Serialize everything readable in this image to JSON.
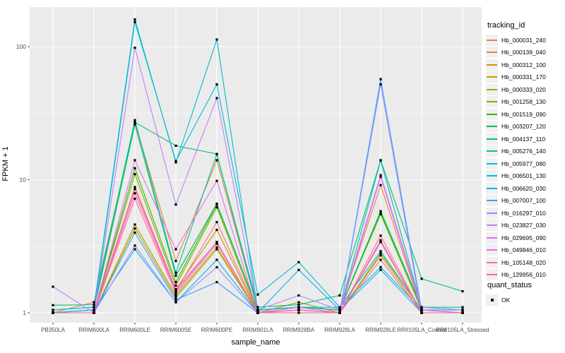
{
  "axes": {
    "y_title": "FPKM + 1",
    "x_title": "sample_name"
  },
  "legend": {
    "tracking_title": "tracking_id",
    "quant_title": "quant_status",
    "quant_label": "OK"
  },
  "colors": {
    "panel_bg": "#EBEBEB",
    "grid": "#FFFFFF",
    "tick": "#333333",
    "tick_label": "#4D4D4D",
    "point": "#000000",
    "legend_key_bg": "#F0F0F0"
  },
  "chart_data": {
    "type": "line",
    "title": "",
    "xlabel": "sample_name",
    "ylabel": "FPKM + 1",
    "y_scale": "log10",
    "ylim": [
      0.86,
      200
    ],
    "grid": true,
    "legend_position": "right",
    "yticks": [
      {
        "label": "100",
        "value": 100
      },
      {
        "label": "10",
        "value": 10
      },
      {
        "label": "1",
        "value": 1
      }
    ],
    "minor_gridlines": [
      3.162,
      31.62
    ],
    "categories": [
      "PB350LA",
      "RRIM600LA",
      "RRIM600LE",
      "RRIM600SE",
      "RRIM600PE",
      "RRIM901LA",
      "RRIM928BA",
      "RRIM928LA",
      "RRIM928LE",
      "RRII105LA_Control",
      "RRII105LA_Stressed"
    ],
    "legend_title": "tracking_id",
    "point_legend": {
      "title": "quant_status",
      "label": "OK",
      "marker": "black-square"
    },
    "series": [
      {
        "name": "Hb_000031_240",
        "color": "#F8766D",
        "values": [
          1,
          1,
          8.5,
          1.45,
          4.8,
          1,
          1.05,
          1,
          3.8,
          1,
          1
        ]
      },
      {
        "name": "Hb_000139_040",
        "color": "#EA8331",
        "values": [
          1,
          1.2,
          27,
          2.45,
          14,
          1.05,
          1.1,
          1.05,
          9.1,
          1.05,
          1
        ]
      },
      {
        "name": "Hb_000312_100",
        "color": "#D89000",
        "values": [
          1,
          1,
          8.8,
          1.5,
          4.2,
          1,
          1.05,
          1,
          3.4,
          1,
          1
        ]
      },
      {
        "name": "Hb_000331_170",
        "color": "#C09B00",
        "values": [
          1,
          1,
          4.3,
          1.3,
          3.0,
          1,
          1.05,
          1,
          2.7,
          1,
          1
        ]
      },
      {
        "name": "Hb_000333_020",
        "color": "#A3A500",
        "values": [
          1,
          1,
          4.6,
          1.35,
          3.1,
          1,
          1.2,
          1,
          2.8,
          1.05,
          1
        ]
      },
      {
        "name": "Hb_001258_130",
        "color": "#7CAE00",
        "values": [
          1,
          1,
          11,
          1.6,
          6.2,
          1,
          1.1,
          1.05,
          5.5,
          1.05,
          1
        ]
      },
      {
        "name": "Hb_001519_090",
        "color": "#39B600",
        "values": [
          1,
          1,
          12.2,
          1.7,
          6.5,
          1.05,
          1.1,
          1.05,
          5.6,
          1.05,
          1.05
        ]
      },
      {
        "name": "Hb_003207_120",
        "color": "#00BB4E",
        "values": [
          1,
          1.05,
          26,
          1.9,
          6.6,
          1.05,
          1.1,
          1.05,
          5.8,
          1.1,
          1.05
        ]
      },
      {
        "name": "Hb_004137_110",
        "color": "#00BF7D",
        "values": [
          1.14,
          1.15,
          27,
          18,
          15.6,
          1.1,
          1.15,
          1.35,
          14,
          1.8,
          1.45
        ]
      },
      {
        "name": "Hb_005276_140",
        "color": "#00C1A3",
        "values": [
          1.05,
          1.1,
          28,
          2.0,
          15.5,
          1.05,
          1.1,
          1.05,
          13.9,
          1.1,
          1.1
        ]
      },
      {
        "name": "Hb_005977_080",
        "color": "#00BFC4",
        "values": [
          1.05,
          1.1,
          160,
          13.5,
          113,
          1.05,
          1.1,
          1.1,
          2.9,
          1.05,
          1.05
        ]
      },
      {
        "name": "Hb_006501_130",
        "color": "#00BAE0",
        "values": [
          1,
          1.05,
          153,
          13.8,
          52,
          1.37,
          2.4,
          1.1,
          2.2,
          1.05,
          1.05
        ]
      },
      {
        "name": "Hb_006620_030",
        "color": "#00B0F6",
        "values": [
          1,
          1.05,
          3.0,
          1.2,
          2.5,
          1,
          2.1,
          1.05,
          2.1,
          1,
          1
        ]
      },
      {
        "name": "Hb_007007_100",
        "color": "#35A2FF",
        "values": [
          1,
          1,
          4.0,
          1.25,
          1.7,
          1,
          1.05,
          1,
          57,
          1.05,
          1
        ]
      },
      {
        "name": "Hb_016297_010",
        "color": "#9590FF",
        "values": [
          1,
          1,
          3.2,
          1.2,
          2.2,
          1,
          1.05,
          1,
          52,
          1,
          1
        ]
      },
      {
        "name": "Hb_023827_030",
        "color": "#C77CFF",
        "values": [
          1.57,
          1,
          98,
          6.5,
          41,
          1.05,
          1.35,
          1.05,
          10.8,
          1.1,
          1.05
        ]
      },
      {
        "name": "Hb_029695_090",
        "color": "#E76BF3",
        "values": [
          1,
          1,
          14,
          3.0,
          9.8,
          1,
          1.1,
          1,
          10.5,
          1.05,
          1
        ]
      },
      {
        "name": "Hb_049846_010",
        "color": "#FA62DB",
        "values": [
          1,
          1,
          8.6,
          1.5,
          3.4,
          1,
          1.05,
          1,
          3.5,
          1,
          1
        ]
      },
      {
        "name": "Hb_105148_020",
        "color": "#FF62BC",
        "values": [
          1,
          1,
          7.9,
          1.45,
          3.4,
          1,
          1.05,
          1,
          3.4,
          1,
          1
        ]
      },
      {
        "name": "Hb_129956_010",
        "color": "#FF6A98",
        "values": [
          1,
          1,
          7.2,
          1.4,
          3.3,
          1,
          1,
          1,
          2.5,
          1,
          1
        ]
      }
    ]
  }
}
